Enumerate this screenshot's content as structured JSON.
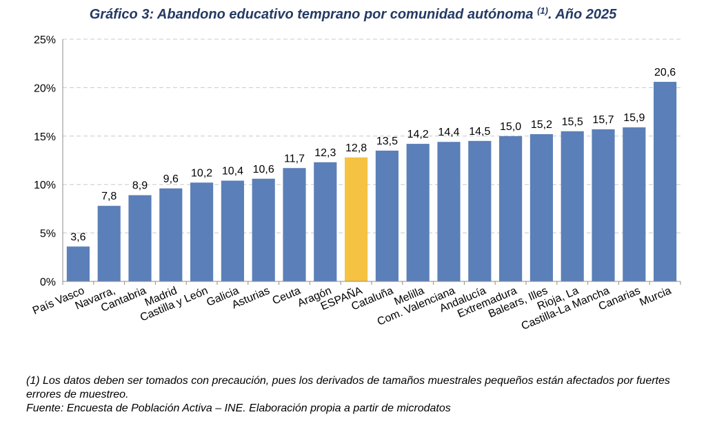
{
  "chart_data": {
    "type": "bar",
    "title_main": "Gráfico 3: Abandono educativo temprano por comunidad autónoma ",
    "title_ref": "(1)",
    "title_tail": ". Año 2025",
    "categories": [
      "País Vasco",
      "Navarra,",
      "Cantabria",
      "Madrid",
      "Castilla y León",
      "Galicia",
      "Asturias",
      "Ceuta",
      "Aragón",
      "ESPAÑA",
      "Cataluña",
      "Melilla",
      "Com. Valenciana",
      "Andalucía",
      "Extremadura",
      "Balears, Illes",
      "Rioja, La",
      "Castilla-La Mancha",
      "Canarias",
      "Murcia"
    ],
    "values": [
      3.6,
      7.8,
      8.9,
      9.6,
      10.2,
      10.4,
      10.6,
      11.7,
      12.3,
      12.8,
      13.5,
      14.2,
      14.4,
      14.5,
      15.0,
      15.2,
      15.5,
      15.7,
      15.9,
      20.6
    ],
    "data_labels": [
      "3,6",
      "7,8",
      "8,9",
      "9,6",
      "10,2",
      "10,4",
      "10,6",
      "11,7",
      "12,3",
      "12,8",
      "13,5",
      "14,2",
      "14,4",
      "14,5",
      "15,0",
      "15,2",
      "15,5",
      "15,7",
      "15,9",
      "20,6"
    ],
    "highlight_category": "ESPAÑA",
    "yticks": [
      0,
      5,
      10,
      15,
      20,
      25
    ],
    "ytick_labels": [
      "0%",
      "5%",
      "10%",
      "15%",
      "20%",
      "25%"
    ],
    "ylim": [
      0,
      25
    ],
    "xlabel": "",
    "ylabel": "",
    "grid": "horizontal dashed",
    "legend": "none",
    "colors": {
      "bar": "#5b7fb8",
      "highlight": "#f5c242",
      "grid": "#c8c8c8",
      "axis": "#8c8c8c",
      "title": "#243a63"
    }
  },
  "footnotes": {
    "note1": "(1) Los datos deben ser tomados con precaución, pues los derivados de tamaños muestrales pequeños están afectados por fuertes errores de muestreo.",
    "source": "Fuente: Encuesta de Población Activa – INE. Elaboración propia a partir de microdatos"
  }
}
